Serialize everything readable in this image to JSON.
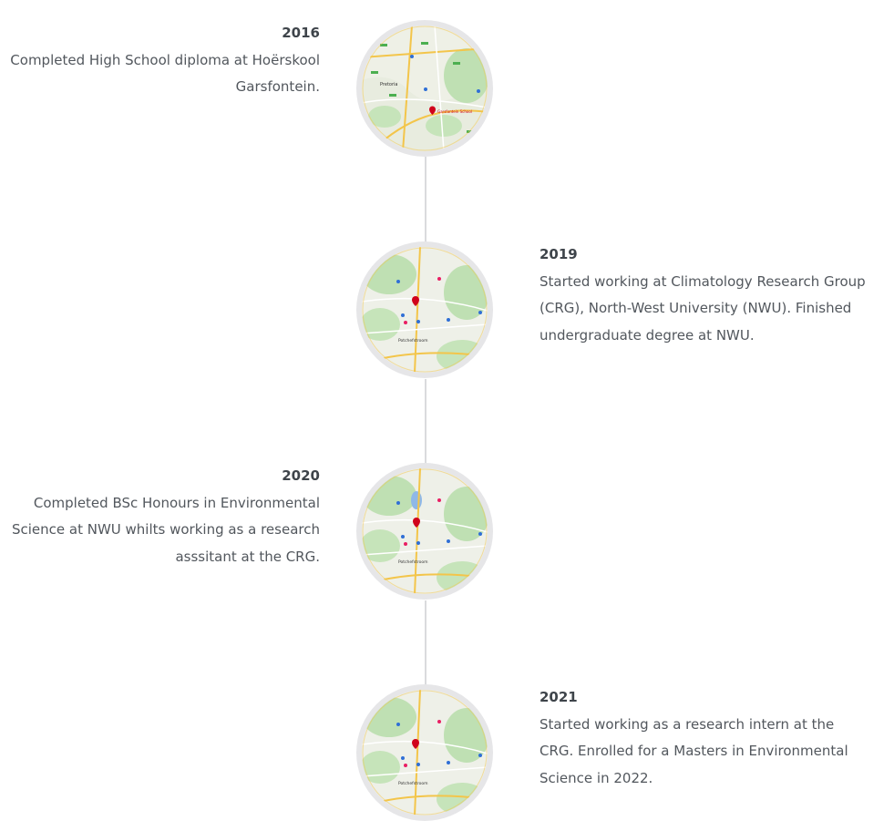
{
  "timeline": {
    "entries": [
      {
        "year": "2016",
        "description": "Completed High School diploma at Hoërskool Garsfontein.",
        "map_labels": [
          "Pretoria",
          "Garsfontein School"
        ]
      },
      {
        "year": "2019",
        "description": "Started working at Climatology Research Group (CRG), North-West University (NWU). Finished undergraduate degree at NWU.",
        "map_labels": [
          "Potchefstroom"
        ]
      },
      {
        "year": "2020",
        "description": "Completed BSc Honours in Environmental Science at NWU whilts working as a research asssitant at the CRG.",
        "map_labels": [
          "Potchefstroom"
        ]
      },
      {
        "year": "2021",
        "description": "Started working as a research intern at the CRG. Enrolled for a Masters in Environmental Science in 2022.",
        "map_labels": [
          "Potchefstroom"
        ]
      }
    ]
  },
  "colors": {
    "line": "#dadbdd",
    "marker_ring": "#e6e6e8",
    "pin": "#d0021b",
    "blue_pin": "#2f6fd6",
    "road": "#f3c54a",
    "park": "#b7dfae",
    "land": "#eef0e8"
  },
  "icons": [
    "map-pin-icon"
  ]
}
